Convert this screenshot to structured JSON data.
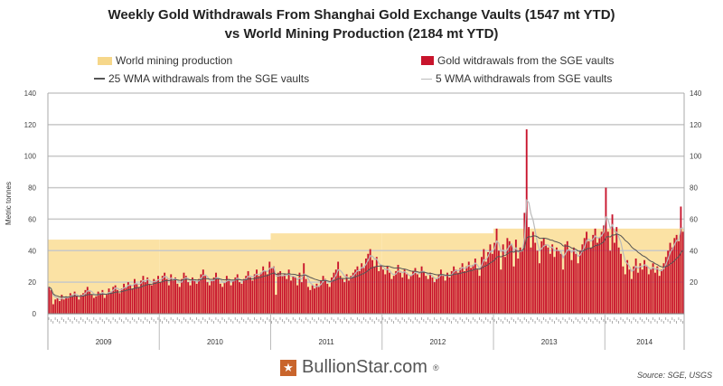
{
  "chart_data": {
    "type": "bar",
    "title": "Weekly Gold Withdrawals From Shanghai Gold Exchange Vaults (1547 mt YTD)",
    "subtitle": "vs World Mining Production (2184 mt YTD)",
    "ylabel": "Metric tonnes",
    "ylim": [
      0,
      140
    ],
    "yticks": [
      0,
      20,
      40,
      60,
      80,
      100,
      120,
      140
    ],
    "grid": true,
    "legend_placement": "top",
    "legend": {
      "mining": "World mining production",
      "withdrawals": "Gold witdrawals from the SGE vaults",
      "wma25": "25 WMA withdrawals from the SGE vaults",
      "wma5": "5 WMA withdrawals from SGE vaults"
    },
    "colors": {
      "withdrawals": "#c8142c",
      "mining": "#fbe2a4",
      "wma25": "#555555",
      "wma5": "#bbbbbb"
    },
    "years": [
      {
        "label": "2009",
        "mining": 47,
        "weekly": [
          17,
          15,
          6,
          9,
          10,
          8,
          12,
          9,
          11,
          10,
          13,
          12,
          14,
          11,
          9,
          12,
          13,
          15,
          17,
          14,
          12,
          10,
          11,
          14,
          13,
          15,
          10,
          12,
          16,
          14,
          17,
          18,
          15,
          13,
          16,
          19,
          17,
          20,
          18,
          16,
          22,
          19,
          17,
          21,
          24,
          20,
          23,
          19,
          18,
          22,
          21,
          24
        ]
      },
      {
        "label": "2010",
        "mining": 47,
        "weekly": [
          20,
          24,
          26,
          22,
          18,
          25,
          21,
          23,
          19,
          17,
          22,
          26,
          24,
          20,
          18,
          23,
          21,
          19,
          22,
          25,
          28,
          24,
          20,
          18,
          21,
          23,
          26,
          22,
          19,
          17,
          20,
          24,
          22,
          18,
          21,
          23,
          25,
          20,
          19,
          22,
          24,
          27,
          23,
          21,
          25,
          28,
          24,
          26,
          30,
          27,
          25,
          33
        ]
      },
      {
        "label": "2011",
        "mining": 51,
        "weekly": [
          29,
          30,
          12,
          26,
          27,
          24,
          25,
          22,
          28,
          21,
          24,
          23,
          18,
          26,
          20,
          32,
          22,
          17,
          15,
          18,
          16,
          19,
          17,
          21,
          24,
          22,
          19,
          17,
          23,
          26,
          28,
          33,
          24,
          22,
          20,
          25,
          21,
          24,
          26,
          28,
          30,
          27,
          32,
          29,
          35,
          38,
          41,
          34,
          30,
          36,
          27,
          31
        ]
      },
      {
        "label": "2012",
        "mining": 51,
        "weekly": [
          28,
          25,
          30,
          26,
          22,
          24,
          27,
          31,
          26,
          23,
          28,
          25,
          22,
          24,
          27,
          29,
          25,
          23,
          30,
          27,
          24,
          22,
          26,
          23,
          20,
          22,
          25,
          28,
          24,
          21,
          26,
          23,
          27,
          30,
          28,
          26,
          29,
          32,
          27,
          30,
          33,
          29,
          31,
          35,
          28,
          24,
          36,
          41,
          33,
          39,
          44,
          38
        ]
      },
      {
        "label": "2013",
        "mining": 54,
        "weekly": [
          45,
          54,
          40,
          28,
          44,
          36,
          48,
          46,
          44,
          30,
          47,
          35,
          42,
          40,
          64,
          117,
          55,
          42,
          52,
          45,
          40,
          32,
          46,
          48,
          44,
          42,
          38,
          44,
          36,
          42,
          40,
          38,
          28,
          44,
          46,
          40,
          34,
          42,
          38,
          32,
          40,
          44,
          48,
          52,
          46,
          42,
          50,
          54,
          45,
          48,
          52,
          56
        ]
      },
      {
        "label": "2014",
        "mining": 54,
        "weekly": [
          80,
          52,
          40,
          63,
          45,
          55,
          42,
          38,
          30,
          25,
          34,
          28,
          22,
          30,
          35,
          26,
          32,
          28,
          34,
          30,
          25,
          28,
          32,
          26,
          30,
          24,
          28,
          32,
          36,
          40,
          45,
          42,
          48,
          50,
          46,
          68,
          52
        ]
      }
    ]
  },
  "footer": {
    "brand": "BullionStar.com",
    "registered": "®",
    "source": "Source: SGE, USGS"
  }
}
